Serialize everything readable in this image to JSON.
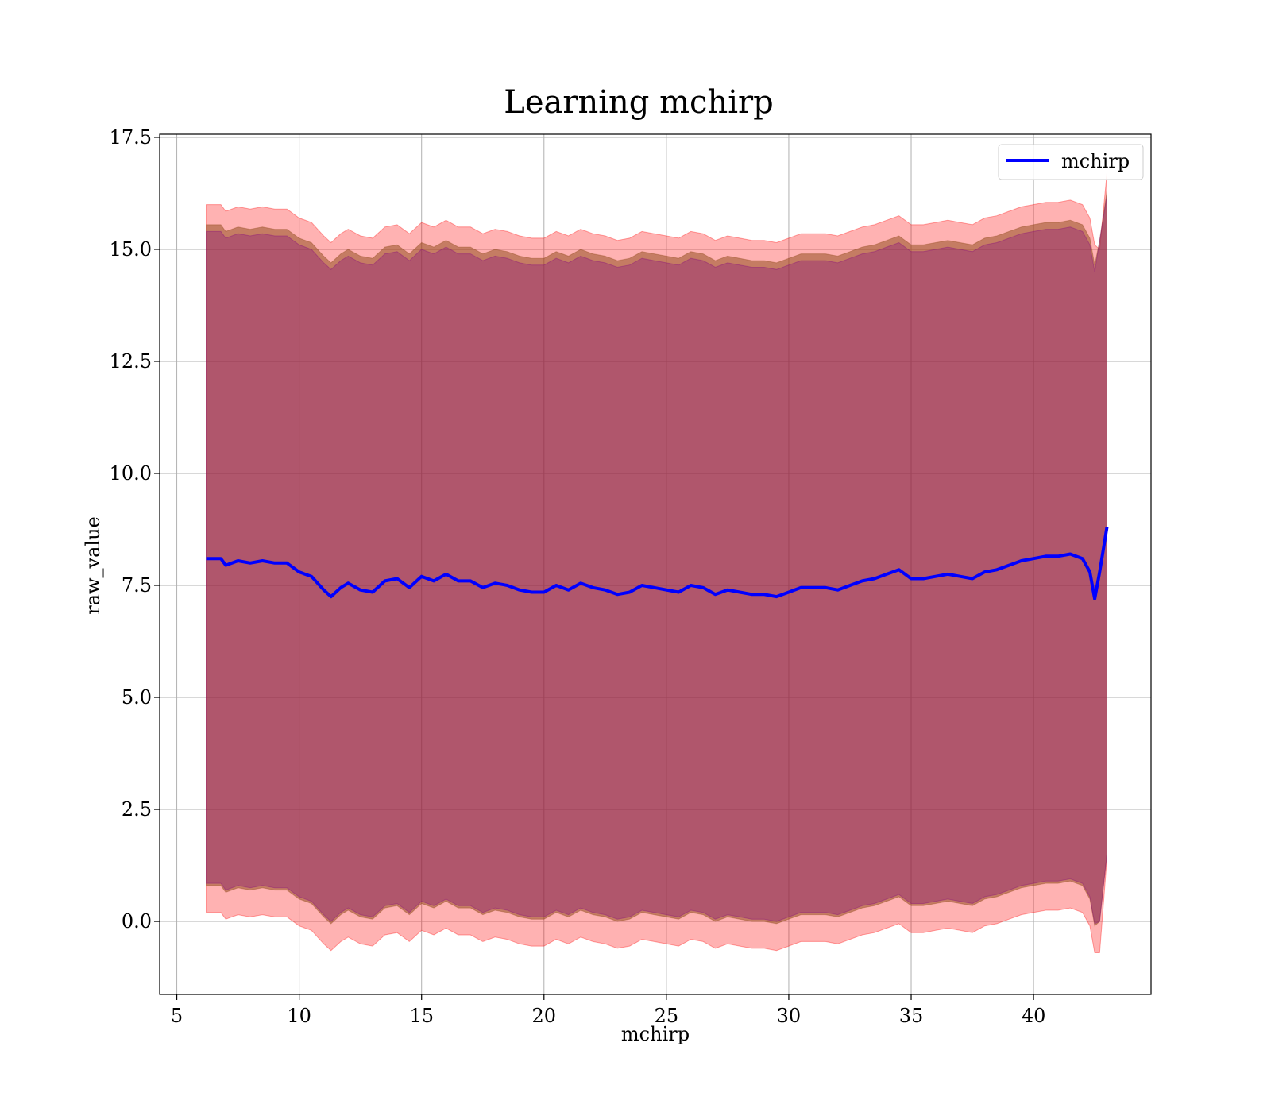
{
  "chart_data": {
    "type": "area",
    "title": "Learning mchirp",
    "xlabel": "mchirp",
    "ylabel": "raw_value",
    "xlim": [
      4.3,
      44.8
    ],
    "ylim": [
      -1.63,
      17.57
    ],
    "xticks": [
      5,
      10,
      15,
      20,
      25,
      30,
      35,
      40
    ],
    "xtick_labels": [
      "5",
      "10",
      "15",
      "20",
      "25",
      "30",
      "35",
      "40"
    ],
    "yticks": [
      0.0,
      2.5,
      5.0,
      7.5,
      10.0,
      12.5,
      15.0,
      17.5
    ],
    "ytick_labels": [
      "0.0",
      "2.5",
      "5.0",
      "7.5",
      "10.0",
      "12.5",
      "15.0",
      "17.5"
    ],
    "grid": true,
    "legend": {
      "position": "top-right",
      "entries": [
        "mchirp"
      ]
    },
    "x": [
      6.2,
      6.8,
      7.0,
      7.5,
      8.0,
      8.5,
      9.0,
      9.5,
      10.0,
      10.5,
      11.0,
      11.3,
      11.7,
      12.0,
      12.5,
      13.0,
      13.5,
      14.0,
      14.5,
      15.0,
      15.5,
      16.0,
      16.5,
      17.0,
      17.5,
      18.0,
      18.5,
      19.0,
      19.5,
      20.0,
      20.5,
      21.0,
      21.5,
      22.0,
      22.5,
      23.0,
      23.5,
      24.0,
      24.5,
      25.0,
      25.5,
      26.0,
      26.5,
      27.0,
      27.5,
      28.0,
      28.5,
      29.0,
      29.5,
      30.0,
      30.5,
      31.0,
      31.5,
      32.0,
      32.5,
      33.0,
      33.5,
      34.0,
      34.5,
      35.0,
      35.5,
      36.0,
      36.5,
      37.0,
      37.5,
      38.0,
      38.5,
      39.0,
      39.5,
      40.0,
      40.5,
      41.0,
      41.5,
      42.0,
      42.3,
      42.5,
      42.7,
      43.0
    ],
    "series": [
      {
        "name": "mchirp",
        "color": "#0000ff",
        "values": [
          8.1,
          8.1,
          7.95,
          8.05,
          8.0,
          8.05,
          8.0,
          8.0,
          7.8,
          7.7,
          7.4,
          7.25,
          7.45,
          7.55,
          7.4,
          7.35,
          7.6,
          7.65,
          7.45,
          7.7,
          7.6,
          7.75,
          7.6,
          7.6,
          7.45,
          7.55,
          7.5,
          7.4,
          7.35,
          7.35,
          7.5,
          7.4,
          7.55,
          7.45,
          7.4,
          7.3,
          7.35,
          7.5,
          7.45,
          7.4,
          7.35,
          7.5,
          7.45,
          7.3,
          7.4,
          7.35,
          7.3,
          7.3,
          7.25,
          7.35,
          7.45,
          7.45,
          7.45,
          7.4,
          7.5,
          7.6,
          7.65,
          7.75,
          7.85,
          7.65,
          7.65,
          7.7,
          7.75,
          7.7,
          7.65,
          7.8,
          7.85,
          7.95,
          8.05,
          8.1,
          8.15,
          8.15,
          8.2,
          8.1,
          7.8,
          7.2,
          7.8,
          8.8
        ]
      }
    ],
    "bands": [
      {
        "color": "#ff0000",
        "opacity": 0.3,
        "upper_offset": 7.9,
        "lower_offset": -7.9,
        "end_upper": [
          15.0,
          16.7
        ],
        "end_lower": [
          -0.7,
          1.4
        ]
      },
      {
        "color": "#8b4513",
        "opacity": 0.5,
        "upper_offset": 7.45,
        "lower_offset": -7.3,
        "end_upper": [
          15.2,
          16.3
        ],
        "end_lower": [
          0.0,
          1.5
        ]
      },
      {
        "color": "#800080",
        "opacity": 0.3,
        "upper_offset": 7.3,
        "lower_offset": -7.25,
        "end_upper": [
          15.2,
          16.2
        ],
        "end_lower": [
          0.0,
          1.5
        ]
      }
    ]
  }
}
